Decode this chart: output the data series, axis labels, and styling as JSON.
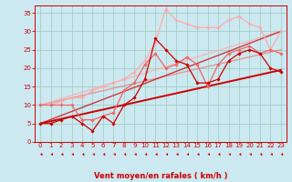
{
  "bg_color": "#cce8f0",
  "grid_color": "#99ccbb",
  "xlabel": "Vent moyen/en rafales ( km/h )",
  "xlim": [
    -0.5,
    23.5
  ],
  "ylim": [
    0,
    37
  ],
  "x_ticks": [
    0,
    1,
    2,
    3,
    4,
    5,
    6,
    7,
    8,
    9,
    10,
    11,
    12,
    13,
    14,
    15,
    16,
    17,
    18,
    19,
    20,
    21,
    22,
    23
  ],
  "y_ticks": [
    0,
    5,
    10,
    15,
    20,
    25,
    30,
    35
  ],
  "series": [
    {
      "x": [
        0,
        1,
        2,
        3,
        4,
        5,
        6,
        7,
        8,
        9,
        10,
        11,
        12,
        13,
        14,
        15,
        16,
        17,
        18,
        19,
        20,
        21,
        22,
        23
      ],
      "y": [
        5,
        5,
        6,
        7,
        5,
        3,
        7,
        5,
        10,
        12,
        17,
        28,
        25,
        22,
        21,
        16,
        16,
        17,
        22,
        24,
        25,
        24,
        20,
        19
      ],
      "color": "#cc0000",
      "lw": 0.9,
      "marker": "D",
      "ms": 1.8,
      "alpha": 1.0,
      "zorder": 6
    },
    {
      "x": [
        0,
        1,
        2,
        3,
        4,
        5,
        6,
        7,
        8,
        9,
        10,
        11,
        12,
        13,
        14,
        15,
        16,
        17,
        18,
        19,
        20,
        21,
        22,
        23
      ],
      "y": [
        10,
        10,
        10,
        10,
        6,
        6,
        7,
        8,
        14,
        16,
        21,
        24,
        20,
        21,
        23,
        21,
        15,
        21,
        24,
        25,
        26,
        24,
        25,
        24
      ],
      "color": "#ee6666",
      "lw": 0.9,
      "marker": "D",
      "ms": 1.8,
      "alpha": 1.0,
      "zorder": 5
    },
    {
      "x": [
        0,
        1,
        2,
        3,
        4,
        5,
        6,
        7,
        8,
        9,
        10,
        11,
        12,
        13,
        14,
        15,
        16,
        17,
        18,
        19,
        20,
        21,
        22,
        23
      ],
      "y": [
        10,
        10,
        11,
        12,
        12,
        14,
        15,
        16,
        17,
        19,
        22,
        27,
        36,
        33,
        32,
        31,
        31,
        31,
        33,
        34,
        32,
        31,
        25,
        30
      ],
      "color": "#ffaaaa",
      "lw": 0.9,
      "marker": "D",
      "ms": 1.8,
      "alpha": 1.0,
      "zorder": 4
    },
    {
      "x": [
        0,
        23
      ],
      "y": [
        5,
        19.5
      ],
      "color": "#cc0000",
      "lw": 1.4,
      "marker": null,
      "ms": 0,
      "alpha": 1.0,
      "zorder": 3
    },
    {
      "x": [
        0,
        23
      ],
      "y": [
        5,
        30
      ],
      "color": "#cc0000",
      "lw": 1.0,
      "marker": null,
      "ms": 0,
      "alpha": 0.75,
      "zorder": 3
    },
    {
      "x": [
        0,
        23
      ],
      "y": [
        10,
        25
      ],
      "color": "#ee7777",
      "lw": 1.0,
      "marker": null,
      "ms": 0,
      "alpha": 0.7,
      "zorder": 2
    },
    {
      "x": [
        0,
        23
      ],
      "y": [
        10,
        30
      ],
      "color": "#ffaaaa",
      "lw": 1.0,
      "marker": null,
      "ms": 0,
      "alpha": 0.75,
      "zorder": 2
    }
  ],
  "arrow_color": "#cc0000",
  "tick_fontsize": 5,
  "xlabel_fontsize": 6,
  "xlabel_fontweight": "bold"
}
